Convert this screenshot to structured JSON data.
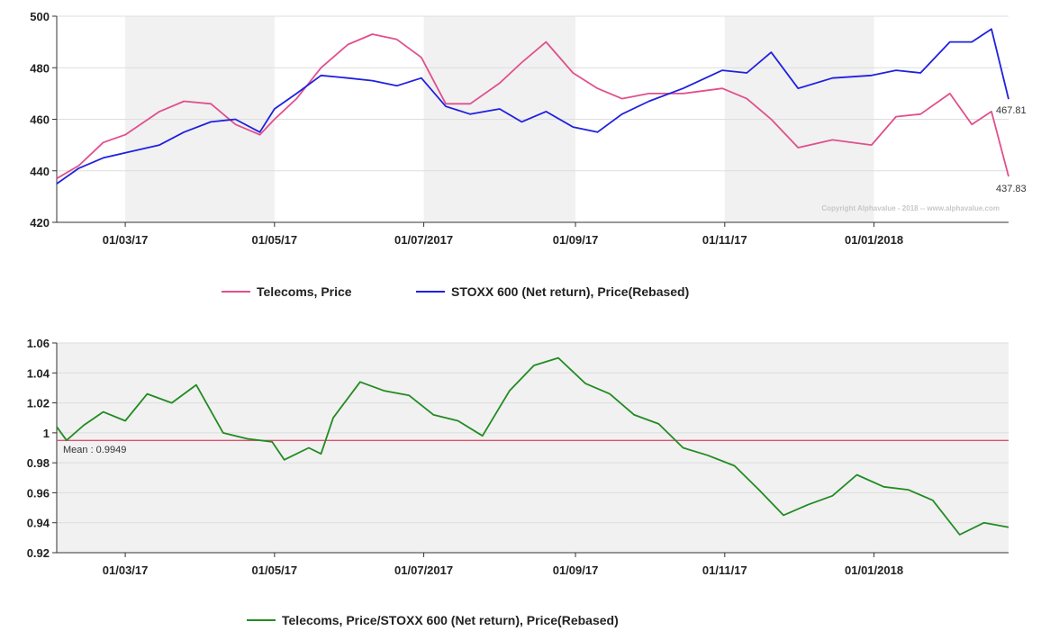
{
  "chart_data": [
    {
      "type": "line",
      "ylim": [
        420,
        500
      ],
      "y_ticks": [
        "420",
        "440",
        "460",
        "480",
        "500"
      ],
      "x_ticks": [
        "01/03/17",
        "01/05/17",
        "01/07/2017",
        "01/09/17",
        "01/11/17",
        "01/01/2018"
      ],
      "x_range": [
        "2017-02-01",
        "2018-02-25"
      ],
      "shaded_periods": [
        [
          "2017-03-01",
          "2017-05-01"
        ],
        [
          "2017-07-01",
          "2017-09-01"
        ],
        [
          "2017-11-01",
          "2018-01-01"
        ]
      ],
      "copyright": "Copyright Alphavalue - 2018 -- www.alphavalue.com",
      "end_labels": [
        "467.81",
        "437.83"
      ],
      "series": [
        {
          "name": "Telecoms, Price",
          "color": "#e0508c",
          "x": [
            "2017-02-01",
            "2017-02-10",
            "2017-02-20",
            "2017-03-01",
            "2017-03-15",
            "2017-03-25",
            "2017-04-05",
            "2017-04-15",
            "2017-04-25",
            "2017-05-01",
            "2017-05-10",
            "2017-05-20",
            "2017-05-31",
            "2017-06-10",
            "2017-06-20",
            "2017-06-30",
            "2017-07-10",
            "2017-07-20",
            "2017-08-01",
            "2017-08-10",
            "2017-08-20",
            "2017-08-31",
            "2017-09-10",
            "2017-09-20",
            "2017-10-01",
            "2017-10-15",
            "2017-10-31",
            "2017-11-10",
            "2017-11-20",
            "2017-12-01",
            "2017-12-15",
            "2017-12-31",
            "2018-01-10",
            "2018-01-20",
            "2018-02-01",
            "2018-02-10",
            "2018-02-18",
            "2018-02-25"
          ],
          "y": [
            437,
            442,
            451,
            454,
            463,
            467,
            466,
            458,
            454,
            460,
            468,
            480,
            489,
            493,
            491,
            484,
            466,
            466,
            474,
            482,
            490,
            478,
            472,
            468,
            470,
            470,
            472,
            468,
            460,
            449,
            452,
            450,
            461,
            462,
            470,
            458,
            463,
            437.83
          ]
        },
        {
          "name": "STOXX 600 (Net return), Price(Rebased)",
          "color": "#2020e0",
          "x": [
            "2017-02-01",
            "2017-02-10",
            "2017-02-20",
            "2017-03-01",
            "2017-03-15",
            "2017-03-25",
            "2017-04-05",
            "2017-04-15",
            "2017-04-25",
            "2017-05-01",
            "2017-05-10",
            "2017-05-20",
            "2017-05-31",
            "2017-06-10",
            "2017-06-20",
            "2017-06-30",
            "2017-07-10",
            "2017-07-20",
            "2017-08-01",
            "2017-08-10",
            "2017-08-20",
            "2017-08-31",
            "2017-09-10",
            "2017-09-20",
            "2017-10-01",
            "2017-10-15",
            "2017-10-31",
            "2017-11-10",
            "2017-11-20",
            "2017-12-01",
            "2017-12-15",
            "2017-12-31",
            "2018-01-10",
            "2018-01-20",
            "2018-02-01",
            "2018-02-10",
            "2018-02-18",
            "2018-02-25"
          ],
          "y": [
            435,
            441,
            445,
            447,
            450,
            455,
            459,
            460,
            455,
            464,
            470,
            477,
            476,
            475,
            473,
            476,
            465,
            462,
            464,
            459,
            463,
            457,
            455,
            462,
            467,
            472,
            479,
            478,
            486,
            472,
            476,
            477,
            479,
            478,
            490,
            490,
            495,
            467.81
          ]
        }
      ]
    },
    {
      "type": "line",
      "ylim": [
        0.92,
        1.06
      ],
      "y_ticks": [
        "0.92",
        "0.94",
        "0.96",
        "0.98",
        "1",
        "1.02",
        "1.04",
        "1.06"
      ],
      "x_ticks": [
        "01/03/17",
        "01/05/17",
        "01/07/2017",
        "01/09/17",
        "01/11/17",
        "01/01/2018"
      ],
      "x_range": [
        "2017-02-01",
        "2018-02-25"
      ],
      "mean_value": 0.9949,
      "mean_label": "Mean : 0.9949",
      "mean_color": "#e05070",
      "series": [
        {
          "name": "Telecoms, Price/STOXX 600 (Net return), Price(Rebased)",
          "color": "#228b22",
          "x": [
            "2017-02-01",
            "2017-02-05",
            "2017-02-12",
            "2017-02-20",
            "2017-03-01",
            "2017-03-10",
            "2017-03-20",
            "2017-03-30",
            "2017-04-10",
            "2017-04-20",
            "2017-04-30",
            "2017-05-05",
            "2017-05-15",
            "2017-05-20",
            "2017-05-25",
            "2017-06-05",
            "2017-06-15",
            "2017-06-25",
            "2017-07-05",
            "2017-07-15",
            "2017-07-25",
            "2017-08-05",
            "2017-08-15",
            "2017-08-25",
            "2017-09-05",
            "2017-09-15",
            "2017-09-25",
            "2017-10-05",
            "2017-10-15",
            "2017-10-25",
            "2017-11-05",
            "2017-11-15",
            "2017-11-25",
            "2017-12-05",
            "2017-12-15",
            "2017-12-25",
            "2018-01-05",
            "2018-01-15",
            "2018-01-25",
            "2018-02-05",
            "2018-02-15",
            "2018-02-25"
          ],
          "y": [
            1.004,
            0.995,
            1.005,
            1.014,
            1.008,
            1.026,
            1.02,
            1.032,
            1.0,
            0.996,
            0.994,
            0.982,
            0.99,
            0.986,
            1.01,
            1.034,
            1.028,
            1.025,
            1.012,
            1.008,
            0.998,
            1.028,
            1.045,
            1.05,
            1.033,
            1.026,
            1.012,
            1.006,
            0.99,
            0.985,
            0.978,
            0.962,
            0.945,
            0.952,
            0.958,
            0.972,
            0.964,
            0.962,
            0.955,
            0.932,
            0.94,
            0.937
          ]
        }
      ]
    }
  ]
}
